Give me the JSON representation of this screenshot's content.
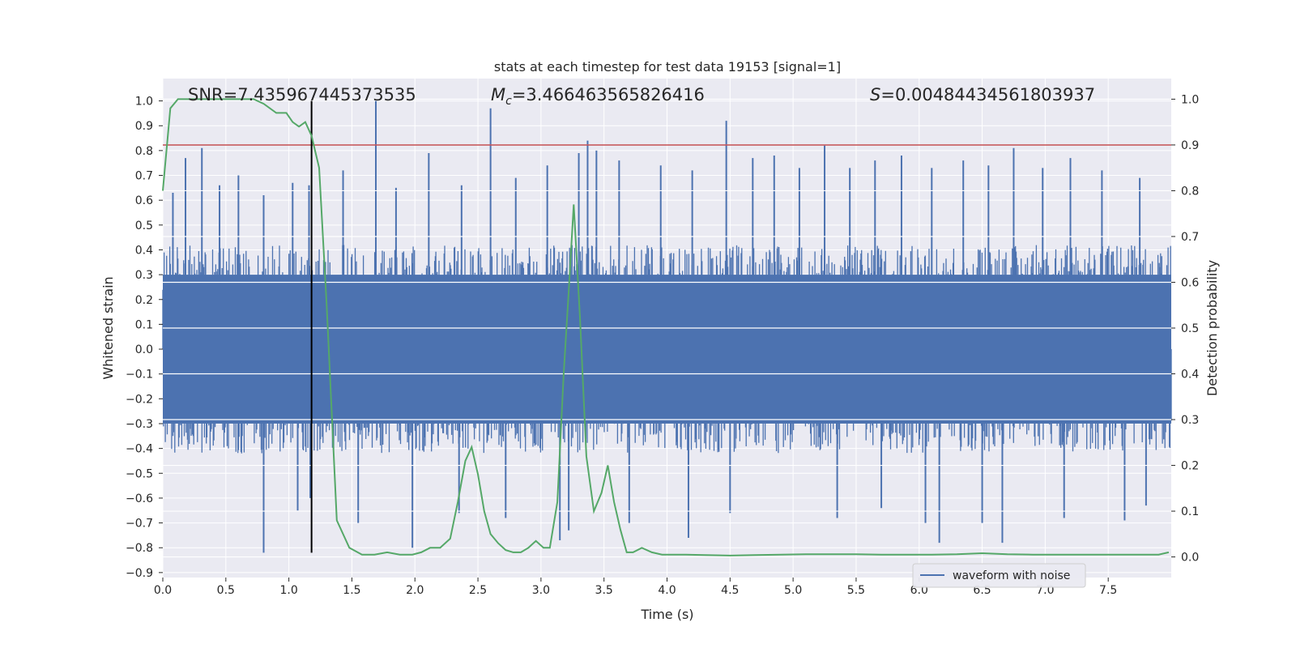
{
  "chart_data": {
    "type": "line",
    "title": "stats at each timestep for test data 19153 [signal=1]",
    "xlabel": "Time (s)",
    "ylabel_left": "Whitened strain",
    "ylabel_right": "Detection probability",
    "xlim": [
      0.0,
      8.0
    ],
    "ylim_left": [
      -0.92,
      1.09
    ],
    "ylim_right": [
      -0.045,
      1.045
    ],
    "x_ticks": [
      "0.0",
      "0.5",
      "1.0",
      "1.5",
      "2.0",
      "2.5",
      "3.0",
      "3.5",
      "4.0",
      "4.5",
      "5.0",
      "5.5",
      "6.0",
      "6.5",
      "7.0",
      "7.5"
    ],
    "y_ticks_left": [
      "1.0",
      "0.9",
      "0.8",
      "0.7",
      "0.6",
      "0.5",
      "0.4",
      "0.3",
      "0.2",
      "0.1",
      "0.0",
      "−0.1",
      "−0.2",
      "−0.3",
      "−0.4",
      "−0.5",
      "−0.6",
      "−0.7",
      "−0.8",
      "−0.9"
    ],
    "y_ticks_right": [
      "1.0",
      "0.9",
      "0.8",
      "0.7",
      "0.6",
      "0.5",
      "0.4",
      "0.3",
      "0.2",
      "0.1",
      "0.0"
    ],
    "annotations": {
      "snr": "SNR=7.435967445373535",
      "mc_symbol": "M",
      "mc_sub": "c",
      "mc_value": "=3.466463565826416",
      "s_symbol": "S",
      "s_value": "=0.00484434561803937"
    },
    "threshold": {
      "value": 0.9,
      "axis": "right",
      "color": "#c44e52"
    },
    "event_marker": {
      "x": 1.18,
      "ymin": -0.82,
      "ymax": 1.0,
      "axis": "left",
      "color": "#000000"
    },
    "waveform": {
      "name": "waveform with noise",
      "color": "#4c72b0",
      "typical_envelope": 0.42,
      "spikes": [
        {
          "x": 0.08,
          "y": 0.63
        },
        {
          "x": 0.18,
          "y": 0.77
        },
        {
          "x": 0.31,
          "y": 0.81
        },
        {
          "x": 0.45,
          "y": 0.66
        },
        {
          "x": 0.6,
          "y": 0.7
        },
        {
          "x": 0.8,
          "y": 0.62
        },
        {
          "x": 1.03,
          "y": 0.67
        },
        {
          "x": 1.16,
          "y": 0.66
        },
        {
          "x": 1.43,
          "y": 0.72
        },
        {
          "x": 1.69,
          "y": 1.0
        },
        {
          "x": 1.85,
          "y": 0.65
        },
        {
          "x": 2.11,
          "y": 0.79
        },
        {
          "x": 2.37,
          "y": 0.66
        },
        {
          "x": 2.6,
          "y": 0.97
        },
        {
          "x": 2.8,
          "y": 0.69
        },
        {
          "x": 3.05,
          "y": 0.74
        },
        {
          "x": 3.3,
          "y": 0.79
        },
        {
          "x": 3.37,
          "y": 0.84
        },
        {
          "x": 3.44,
          "y": 0.8
        },
        {
          "x": 3.62,
          "y": 0.76
        },
        {
          "x": 3.95,
          "y": 0.74
        },
        {
          "x": 4.2,
          "y": 0.72
        },
        {
          "x": 4.47,
          "y": 0.92
        },
        {
          "x": 4.68,
          "y": 0.77
        },
        {
          "x": 4.85,
          "y": 0.78
        },
        {
          "x": 5.05,
          "y": 0.73
        },
        {
          "x": 5.25,
          "y": 0.82
        },
        {
          "x": 5.45,
          "y": 0.73
        },
        {
          "x": 5.65,
          "y": 0.76
        },
        {
          "x": 5.86,
          "y": 0.78
        },
        {
          "x": 6.1,
          "y": 0.73
        },
        {
          "x": 6.35,
          "y": 0.76
        },
        {
          "x": 6.55,
          "y": 0.74
        },
        {
          "x": 6.75,
          "y": 0.81
        },
        {
          "x": 6.98,
          "y": 0.73
        },
        {
          "x": 7.2,
          "y": 0.77
        },
        {
          "x": 7.45,
          "y": 0.72
        },
        {
          "x": 7.75,
          "y": 0.69
        },
        {
          "x": 0.8,
          "y": -0.82
        },
        {
          "x": 1.07,
          "y": -0.65
        },
        {
          "x": 1.17,
          "y": -0.6
        },
        {
          "x": 1.55,
          "y": -0.7
        },
        {
          "x": 1.98,
          "y": -0.8
        },
        {
          "x": 2.35,
          "y": -0.66
        },
        {
          "x": 2.72,
          "y": -0.68
        },
        {
          "x": 3.15,
          "y": -0.77
        },
        {
          "x": 3.22,
          "y": -0.73
        },
        {
          "x": 3.7,
          "y": -0.7
        },
        {
          "x": 4.17,
          "y": -0.76
        },
        {
          "x": 4.5,
          "y": -0.66
        },
        {
          "x": 5.35,
          "y": -0.68
        },
        {
          "x": 5.7,
          "y": -0.64
        },
        {
          "x": 6.05,
          "y": -0.7
        },
        {
          "x": 6.16,
          "y": -0.78
        },
        {
          "x": 6.5,
          "y": -0.7
        },
        {
          "x": 6.66,
          "y": -0.78
        },
        {
          "x": 7.15,
          "y": -0.68
        },
        {
          "x": 7.63,
          "y": -0.69
        },
        {
          "x": 7.8,
          "y": -0.63
        }
      ]
    },
    "detection_probability": {
      "color": "#55a868",
      "x": [
        0.0,
        0.06,
        0.12,
        0.2,
        0.3,
        0.45,
        0.6,
        0.72,
        0.8,
        0.9,
        0.98,
        1.03,
        1.08,
        1.13,
        1.18,
        1.24,
        1.3,
        1.38,
        1.48,
        1.58,
        1.68,
        1.78,
        1.88,
        1.98,
        2.05,
        2.12,
        2.2,
        2.28,
        2.34,
        2.4,
        2.45,
        2.5,
        2.55,
        2.6,
        2.66,
        2.72,
        2.78,
        2.84,
        2.9,
        2.96,
        3.02,
        3.07,
        3.13,
        3.18,
        3.22,
        3.26,
        3.31,
        3.36,
        3.42,
        3.48,
        3.53,
        3.58,
        3.63,
        3.68,
        3.73,
        3.8,
        3.88,
        3.96,
        4.05,
        4.15,
        4.3,
        4.5,
        4.7,
        4.9,
        5.1,
        5.3,
        5.5,
        5.7,
        5.9,
        6.1,
        6.3,
        6.5,
        6.7,
        6.9,
        7.1,
        7.3,
        7.5,
        7.7,
        7.9,
        7.98
      ],
      "y": [
        0.8,
        0.98,
        1.0,
        1.0,
        1.0,
        1.0,
        1.0,
        1.0,
        0.99,
        0.97,
        0.97,
        0.95,
        0.94,
        0.95,
        0.92,
        0.85,
        0.55,
        0.08,
        0.02,
        0.005,
        0.005,
        0.01,
        0.005,
        0.005,
        0.01,
        0.02,
        0.02,
        0.04,
        0.12,
        0.21,
        0.24,
        0.18,
        0.1,
        0.05,
        0.03,
        0.015,
        0.01,
        0.01,
        0.02,
        0.035,
        0.02,
        0.02,
        0.12,
        0.4,
        0.58,
        0.77,
        0.52,
        0.22,
        0.1,
        0.14,
        0.2,
        0.12,
        0.06,
        0.01,
        0.01,
        0.02,
        0.01,
        0.005,
        0.005,
        0.005,
        0.004,
        0.003,
        0.004,
        0.005,
        0.006,
        0.006,
        0.006,
        0.005,
        0.005,
        0.005,
        0.006,
        0.008,
        0.006,
        0.005,
        0.005,
        0.005,
        0.005,
        0.005,
        0.005,
        0.01
      ]
    },
    "legend": {
      "label": "waveform with noise",
      "placement": "lower-right"
    },
    "grid": true
  }
}
